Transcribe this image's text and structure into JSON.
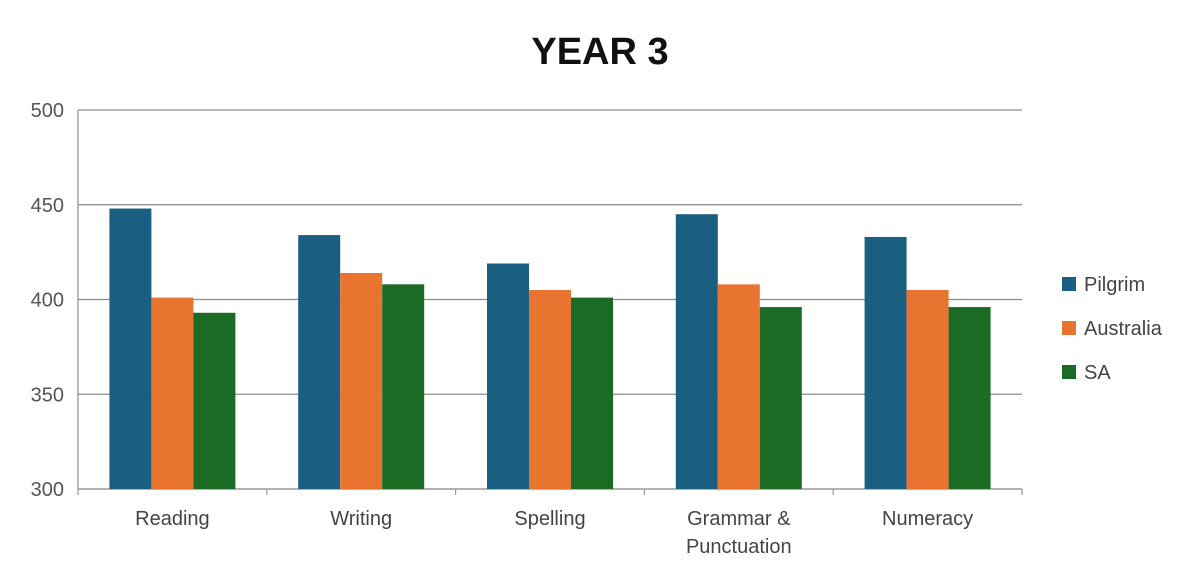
{
  "chart_data": {
    "type": "bar",
    "title": "YEAR 3",
    "xlabel": "",
    "ylabel": "",
    "ylim": [
      300,
      500
    ],
    "yticks": [
      300,
      350,
      400,
      450,
      500
    ],
    "grid": true,
    "legend_position": "right",
    "categories": [
      [
        "Reading"
      ],
      [
        "Writing"
      ],
      [
        "Spelling"
      ],
      [
        "Grammar &",
        "Punctuation"
      ],
      [
        "Numeracy"
      ]
    ],
    "series": [
      {
        "name": "Pilgrim",
        "color": "#1a5f82",
        "values": [
          448,
          434,
          419,
          445,
          433
        ]
      },
      {
        "name": "Australia",
        "color": "#e8742f",
        "values": [
          401,
          414,
          405,
          408,
          405
        ]
      },
      {
        "name": "SA",
        "color": "#1c6b25",
        "values": [
          393,
          408,
          401,
          396,
          396
        ]
      }
    ]
  }
}
